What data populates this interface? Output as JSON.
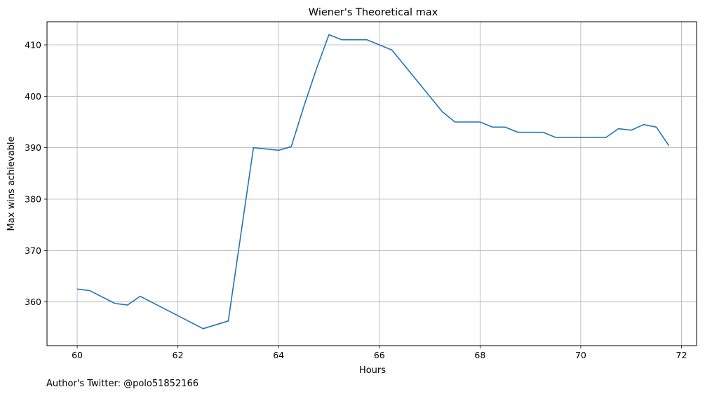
{
  "chart_data": {
    "type": "line",
    "title": "Wiener's Theoretical max",
    "xlabel": "Hours",
    "ylabel": "Max wins achievable",
    "xlim": [
      59.4,
      72.3
    ],
    "ylim": [
      351.5,
      414.5
    ],
    "xticks": [
      60,
      62,
      64,
      66,
      68,
      70,
      72
    ],
    "yticks": [
      360,
      370,
      380,
      390,
      400,
      410
    ],
    "grid": true,
    "line_color": "#1f77b4",
    "series": [
      {
        "x": [
          60,
          60.25,
          60.75,
          61,
          61.25,
          62.5,
          63,
          63.5,
          64,
          64.25,
          64.5,
          64.75,
          65,
          65.25,
          65.75,
          66.25,
          67.25,
          67.5,
          68,
          68.25,
          68.5,
          68.75,
          69.25,
          69.5,
          70,
          70.5,
          70.75,
          71,
          71.25,
          71.5,
          71.75
        ],
        "y": [
          362.5,
          362.2,
          359.7,
          359.4,
          361.1,
          354.8,
          356.3,
          390.0,
          389.5,
          390.2,
          398.0,
          405.3,
          412.0,
          411.0,
          411.0,
          409.0,
          397.0,
          395.0,
          395.0,
          394.0,
          394.0,
          393.0,
          393.0,
          392.0,
          392.0,
          392.0,
          393.7,
          393.4,
          394.5,
          394.0,
          390.4
        ]
      }
    ]
  },
  "footer": {
    "author": "Author's Twitter: @polo51852166"
  }
}
